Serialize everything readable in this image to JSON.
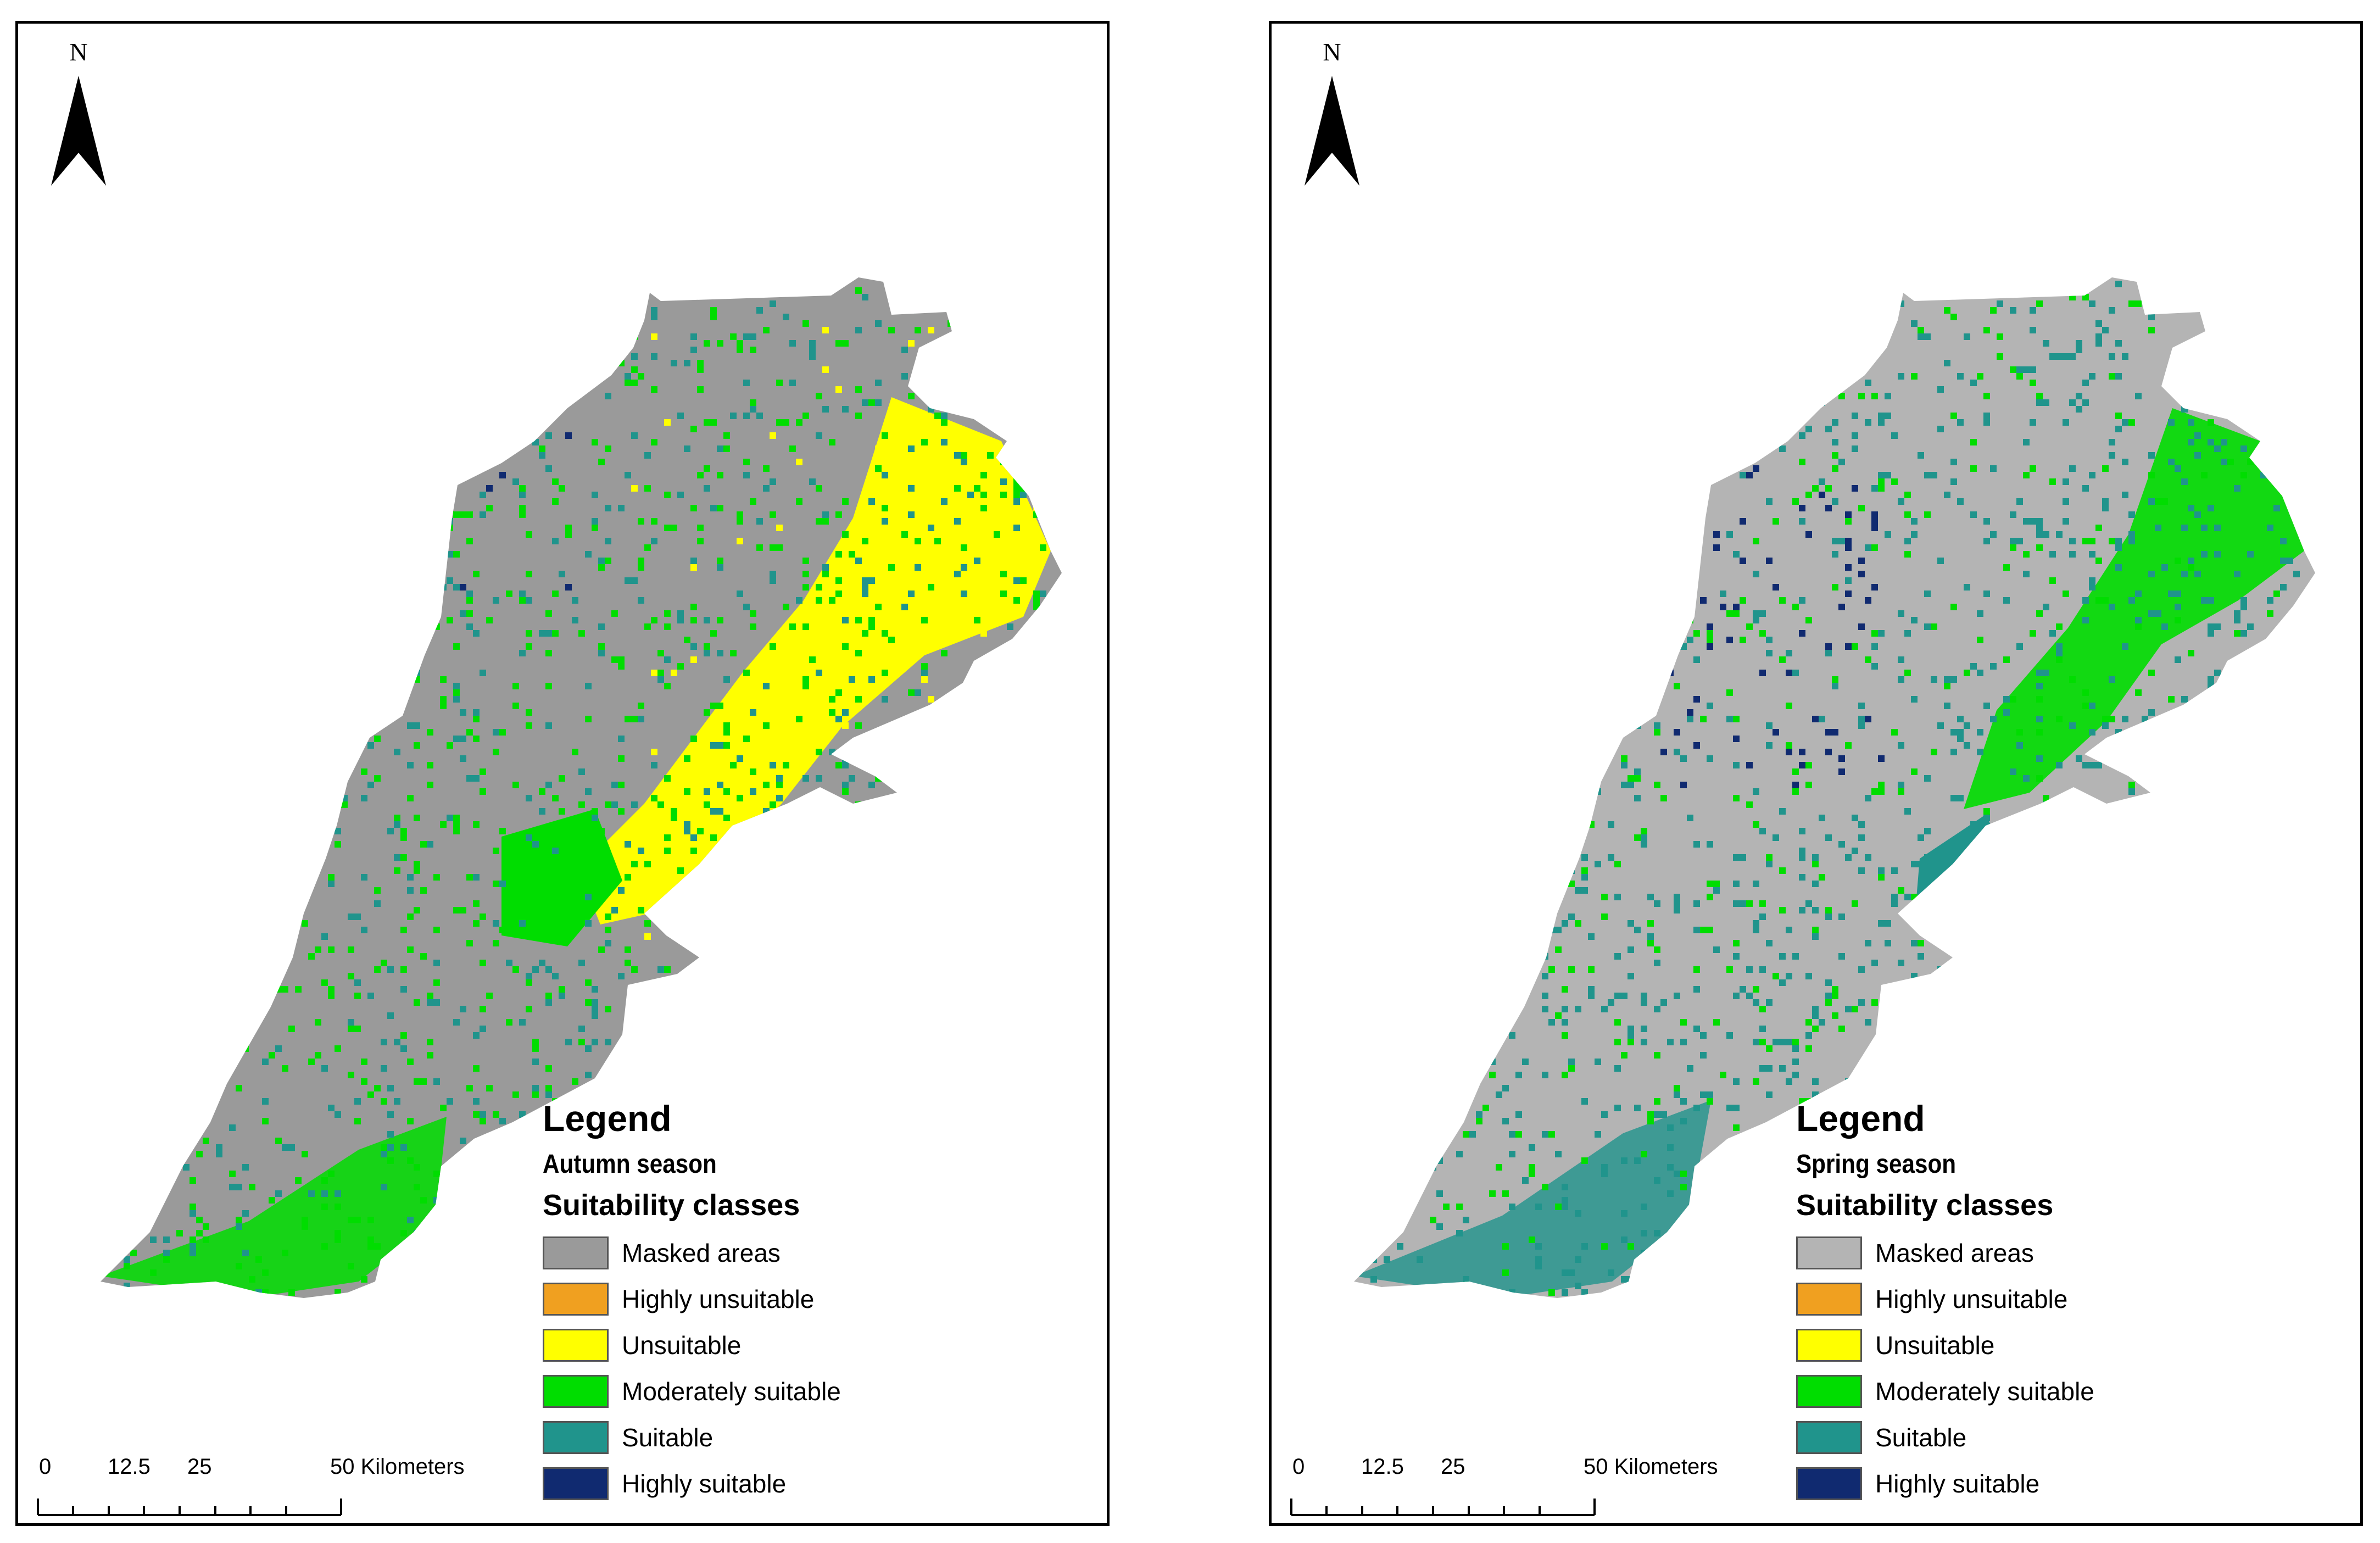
{
  "north_letter": "N",
  "legend": {
    "title": "Legend",
    "classes_heading": "Suitability classes",
    "items": [
      {
        "label": "Masked areas",
        "color": "#9a9a9a"
      },
      {
        "label": "Highly unsuitable",
        "color": "#f0a020"
      },
      {
        "label": "Unsuitable",
        "color": "#ffff00"
      },
      {
        "label": "Moderately suitable",
        "color": "#00dd00"
      },
      {
        "label": "Suitable",
        "color": "#20948c"
      },
      {
        "label": "Highly suitable",
        "color": "#102a70"
      }
    ]
  },
  "scale": {
    "ticks": [
      "0",
      "12.5",
      "25",
      "50 Kilometers"
    ]
  },
  "maps": [
    {
      "season": "Autumn season",
      "masked_color": "#9a9a9a",
      "dominant_class": "Moderately suitable"
    },
    {
      "season": "Spring season",
      "masked_color": "#b4b4b4",
      "dominant_class": "Suitable"
    }
  ]
}
